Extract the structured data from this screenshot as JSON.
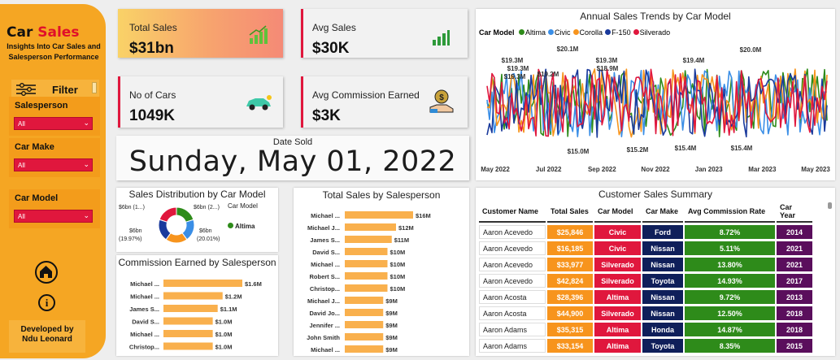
{
  "sidebar": {
    "title_part1": "Car ",
    "title_part2": "Sales",
    "subtitle": "Insights Into Car Sales and Salesperson Performance",
    "filter_label": "Filter",
    "slicers": [
      {
        "title": "Salesperson",
        "value": "All"
      },
      {
        "title": "Car Make",
        "value": "All"
      },
      {
        "title": "Car Model",
        "value": "All"
      }
    ],
    "developer_line1": "Developed by",
    "developer_line2": "Ndu Leonard",
    "info_glyph": "i"
  },
  "kpis": [
    {
      "title": "Total Sales",
      "value": "$31bn",
      "icon": "bar-growth-icon"
    },
    {
      "title": "Avg Sales",
      "value": "$30K",
      "icon": "bar-growth-icon"
    },
    {
      "title": "No of Cars",
      "value": "1049K",
      "icon": "car-icon"
    },
    {
      "title": "Avg Commission Earned",
      "value": "$3K",
      "icon": "money-hand-icon"
    }
  ],
  "date_card": {
    "label": "Date Sold",
    "value": "Sunday, May 01, 2022"
  },
  "trend_chart": {
    "title": "Annual Sales Trends by Car Model",
    "legend_title": "Car Model",
    "x_ticks": [
      "May 2022",
      "Jul 2022",
      "Sep 2022",
      "Nov 2022",
      "Jan 2023",
      "Mar 2023",
      "May 2023"
    ],
    "labels_top": [
      "$19.3M",
      "$20.1M",
      "$19.3M",
      "$19.2M",
      "$19.3M",
      "$18.9M",
      "$19.4M",
      "$20.0M",
      "$19.3M"
    ],
    "labels_bottom": [
      "$15.0M",
      "$15.2M",
      "$15.4M",
      "$15.4M"
    ]
  },
  "donut": {
    "title": "Sales Distribution by Car Model",
    "legend_title": "Car Model",
    "legend_item": "Altima",
    "label_left_1": "$6bn (1...)",
    "label_left_2": "$6bn",
    "label_left_3": "(19.97%)",
    "label_right_1": "$6bn (2...)",
    "label_right_2": "$6bn",
    "label_right_3": "(20.01%)"
  },
  "commission_chart_title": "Commission Earned by Salesperson",
  "total_sales_chart_title": "Total Sales by Salesperson",
  "summary_table": {
    "title": "Customer Sales Summary",
    "headers": [
      "Customer Name",
      "Total Sales",
      "Car Model",
      "Car Make",
      "Avg Commission Rate",
      "Car Year"
    ],
    "rows": [
      [
        "Aaron Acevedo",
        "$25,846",
        "Civic",
        "Ford",
        "8.72%",
        "2014"
      ],
      [
        "Aaron Acevedo",
        "$16,185",
        "Civic",
        "Nissan",
        "5.11%",
        "2021"
      ],
      [
        "Aaron Acevedo",
        "$33,977",
        "Silverado",
        "Nissan",
        "13.80%",
        "2021"
      ],
      [
        "Aaron Acevedo",
        "$42,824",
        "Silverado",
        "Toyota",
        "14.93%",
        "2017"
      ],
      [
        "Aaron Acosta",
        "$28,396",
        "Altima",
        "Nissan",
        "9.72%",
        "2013"
      ],
      [
        "Aaron Acosta",
        "$44,900",
        "Silverado",
        "Nissan",
        "12.50%",
        "2018"
      ],
      [
        "Aaron Adams",
        "$35,315",
        "Altima",
        "Honda",
        "14.87%",
        "2018"
      ],
      [
        "Aaron Adams",
        "$33,154",
        "Altima",
        "Toyota",
        "8.35%",
        "2015"
      ]
    ]
  },
  "chart_data": [
    {
      "type": "line",
      "title": "Annual Sales Trends by Car Model",
      "legend": "top-left",
      "series": [
        {
          "name": "Altima",
          "color": "#2e8b1a"
        },
        {
          "name": "Civic",
          "color": "#3a8ee6"
        },
        {
          "name": "Corolla",
          "color": "#f7941d"
        },
        {
          "name": "F-150",
          "color": "#1a3a9c"
        },
        {
          "name": "Silverado",
          "color": "#e0173d"
        }
      ],
      "x_range": [
        "May 2022",
        "May 2023"
      ],
      "y_range_approx": [
        15.0,
        20.1
      ],
      "y_unit": "$M"
    },
    {
      "type": "pie",
      "title": "Sales Distribution by Car Model",
      "slices": [
        {
          "name": "Altima",
          "value": 6,
          "percent": 20.01,
          "color": "#2e8b1a"
        },
        {
          "name": "Civic",
          "value": 6,
          "percent": 20.0,
          "color": "#3a8ee6"
        },
        {
          "name": "Corolla",
          "value": 6,
          "percent": 20.0,
          "color": "#f7941d"
        },
        {
          "name": "F-150",
          "value": 6,
          "percent": 20.02,
          "color": "#1a3a9c"
        },
        {
          "name": "Silverado",
          "value": 6,
          "percent": 19.97,
          "color": "#e0173d"
        }
      ]
    },
    {
      "type": "bar",
      "title": "Commission Earned by Salesperson",
      "categories": [
        "Michael ...",
        "Michael ...",
        "James S...",
        "David S...",
        "Michael ...",
        "Christop..."
      ],
      "values": [
        1.6,
        1.2,
        1.1,
        1.0,
        1.0,
        1.0
      ],
      "labels": [
        "$1.6M",
        "$1.2M",
        "$1.1M",
        "$1.0M",
        "$1.0M",
        "$1.0M"
      ],
      "color": "#f9b04d"
    },
    {
      "type": "bar",
      "title": "Total Sales by Salesperson",
      "categories": [
        "Michael ...",
        "Michael J...",
        "James S...",
        "David S...",
        "Michael ...",
        "Robert S...",
        "Christop...",
        "Michael J...",
        "David Jo...",
        "Jennifer ...",
        "John Smith",
        "Michael ..."
      ],
      "values": [
        16,
        12,
        11,
        10,
        10,
        10,
        10,
        9,
        9,
        9,
        9,
        9
      ],
      "labels": [
        "$16M",
        "$12M",
        "$11M",
        "$10M",
        "$10M",
        "$10M",
        "$10M",
        "$9M",
        "$9M",
        "$9M",
        "$9M",
        "$9M"
      ],
      "color": "#f9b04d"
    }
  ]
}
